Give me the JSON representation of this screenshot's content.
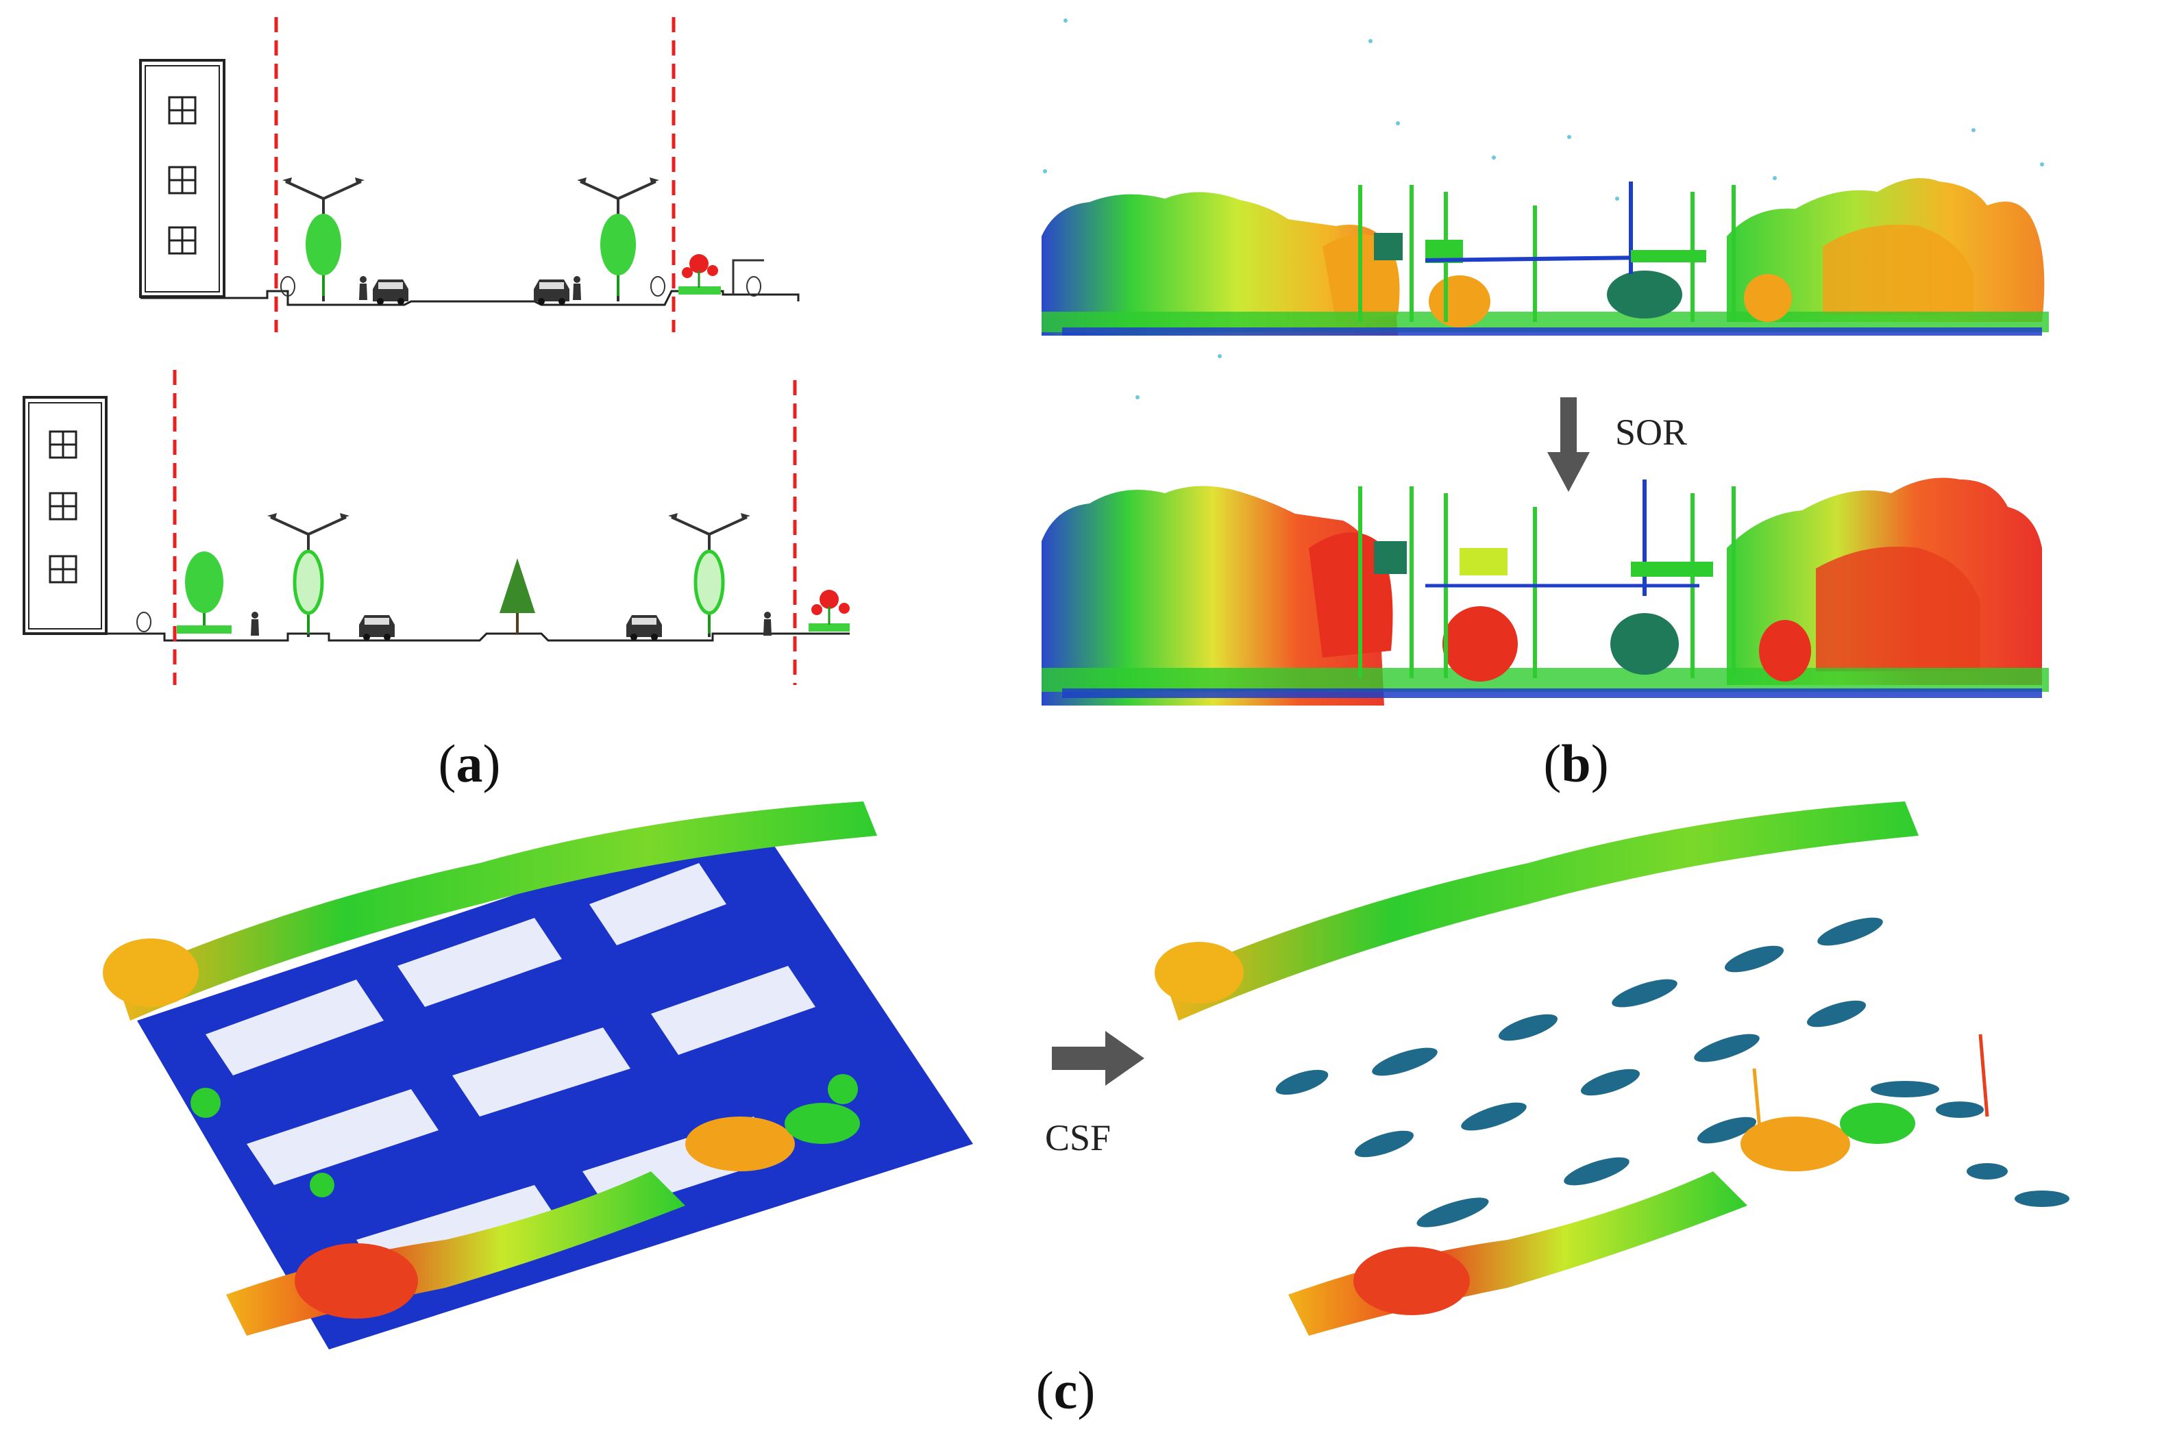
{
  "panels": {
    "a": {
      "label_open": "(",
      "label_letter": "a",
      "label_close": ")"
    },
    "b": {
      "label_open": "(",
      "label_letter": "b",
      "label_close": ")",
      "arrow_label": "SOR"
    },
    "c": {
      "label_open": "(",
      "label_letter": "c",
      "label_close": ")",
      "arrow_label": "CSF"
    }
  },
  "colors": {
    "boundary": "#e82020",
    "tree": "#2ecc2e",
    "ground": "#1a33c8",
    "arrow": "#555555",
    "high": "#e8321e",
    "mid": "#f2c21a",
    "low": "#2d5fd8"
  }
}
